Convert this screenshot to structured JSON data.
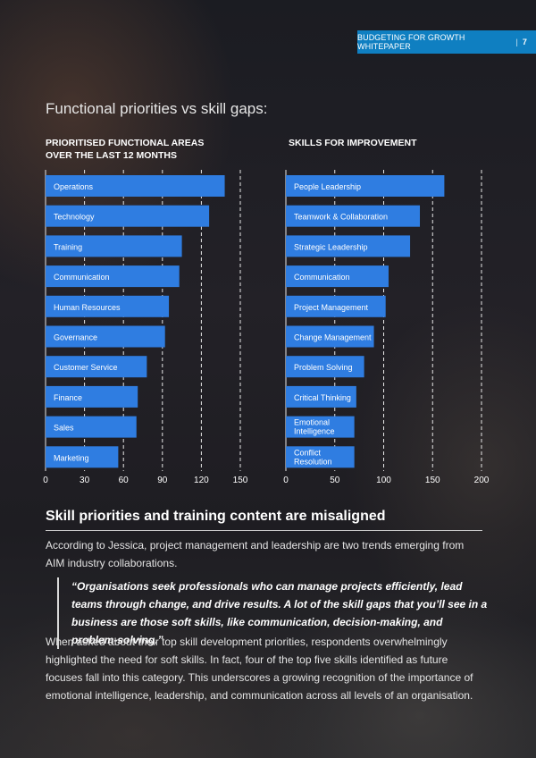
{
  "header": {
    "title": "BUDGETING FOR GROWTH WHITEPAPER",
    "separator": "|",
    "page": "7"
  },
  "section_title": "Functional priorities vs skill gaps:",
  "left_chart_heading_line1": "PRIORITISED FUNCTIONAL AREAS",
  "left_chart_heading_line2": "OVER THE LAST 12 MONTHS",
  "right_chart_heading": "SKILLS FOR IMPROVEMENT",
  "chart_data": [
    {
      "type": "bar",
      "orientation": "horizontal",
      "title": "PRIORITISED FUNCTIONAL AREAS OVER THE LAST 12 MONTHS",
      "categories": [
        "Operations",
        "Technology",
        "Training",
        "Communication",
        "Human Resources",
        "Governance",
        "Customer Service",
        "Finance",
        "Sales",
        "Marketing"
      ],
      "values": [
        138,
        126,
        105,
        103,
        95,
        92,
        78,
        71,
        70,
        56
      ],
      "xlim": [
        0,
        150
      ],
      "xticks": [
        "0",
        "30",
        "60",
        "90",
        "120",
        "150"
      ],
      "grid": "vertical dashed",
      "bar_color": "#2f7de1"
    },
    {
      "type": "bar",
      "orientation": "horizontal",
      "title": "SKILLS FOR IMPROVEMENT",
      "categories": [
        "People Leadership",
        "Teamwork & Collaboration",
        "Strategic Leadership",
        "Communication",
        "Project Management",
        "Change Management",
        "Problem Solving",
        "Critical Thinking",
        "Emotional Intelligence",
        "Conflict Resolution"
      ],
      "values": [
        162,
        137,
        127,
        105,
        102,
        90,
        80,
        72,
        70,
        70
      ],
      "xlim": [
        0,
        200
      ],
      "xticks": [
        "0",
        "50",
        "100",
        "150",
        "200"
      ],
      "grid": "vertical dashed",
      "bar_color": "#2f7de1"
    }
  ],
  "article": {
    "heading": "Skill priorities and training content are misaligned",
    "intro": "According to Jessica, project management and leadership are two trends emerging from AIM industry collaborations.",
    "quote": "“Organisations seek professionals who can manage projects efficiently, lead teams through change, and drive results. A lot of the skill gaps that you’ll see in a business are those soft skills, like communication, decision-making, and problem-solving.”",
    "body": "When asked about their top skill development priorities, respondents overwhelmingly highlighted the need for soft skills. In fact, four of the top five skills identified as future focuses fall into this category. This underscores a growing recognition of the importance of emotional intelligence, leadership, and communication across all levels of an organisation."
  }
}
